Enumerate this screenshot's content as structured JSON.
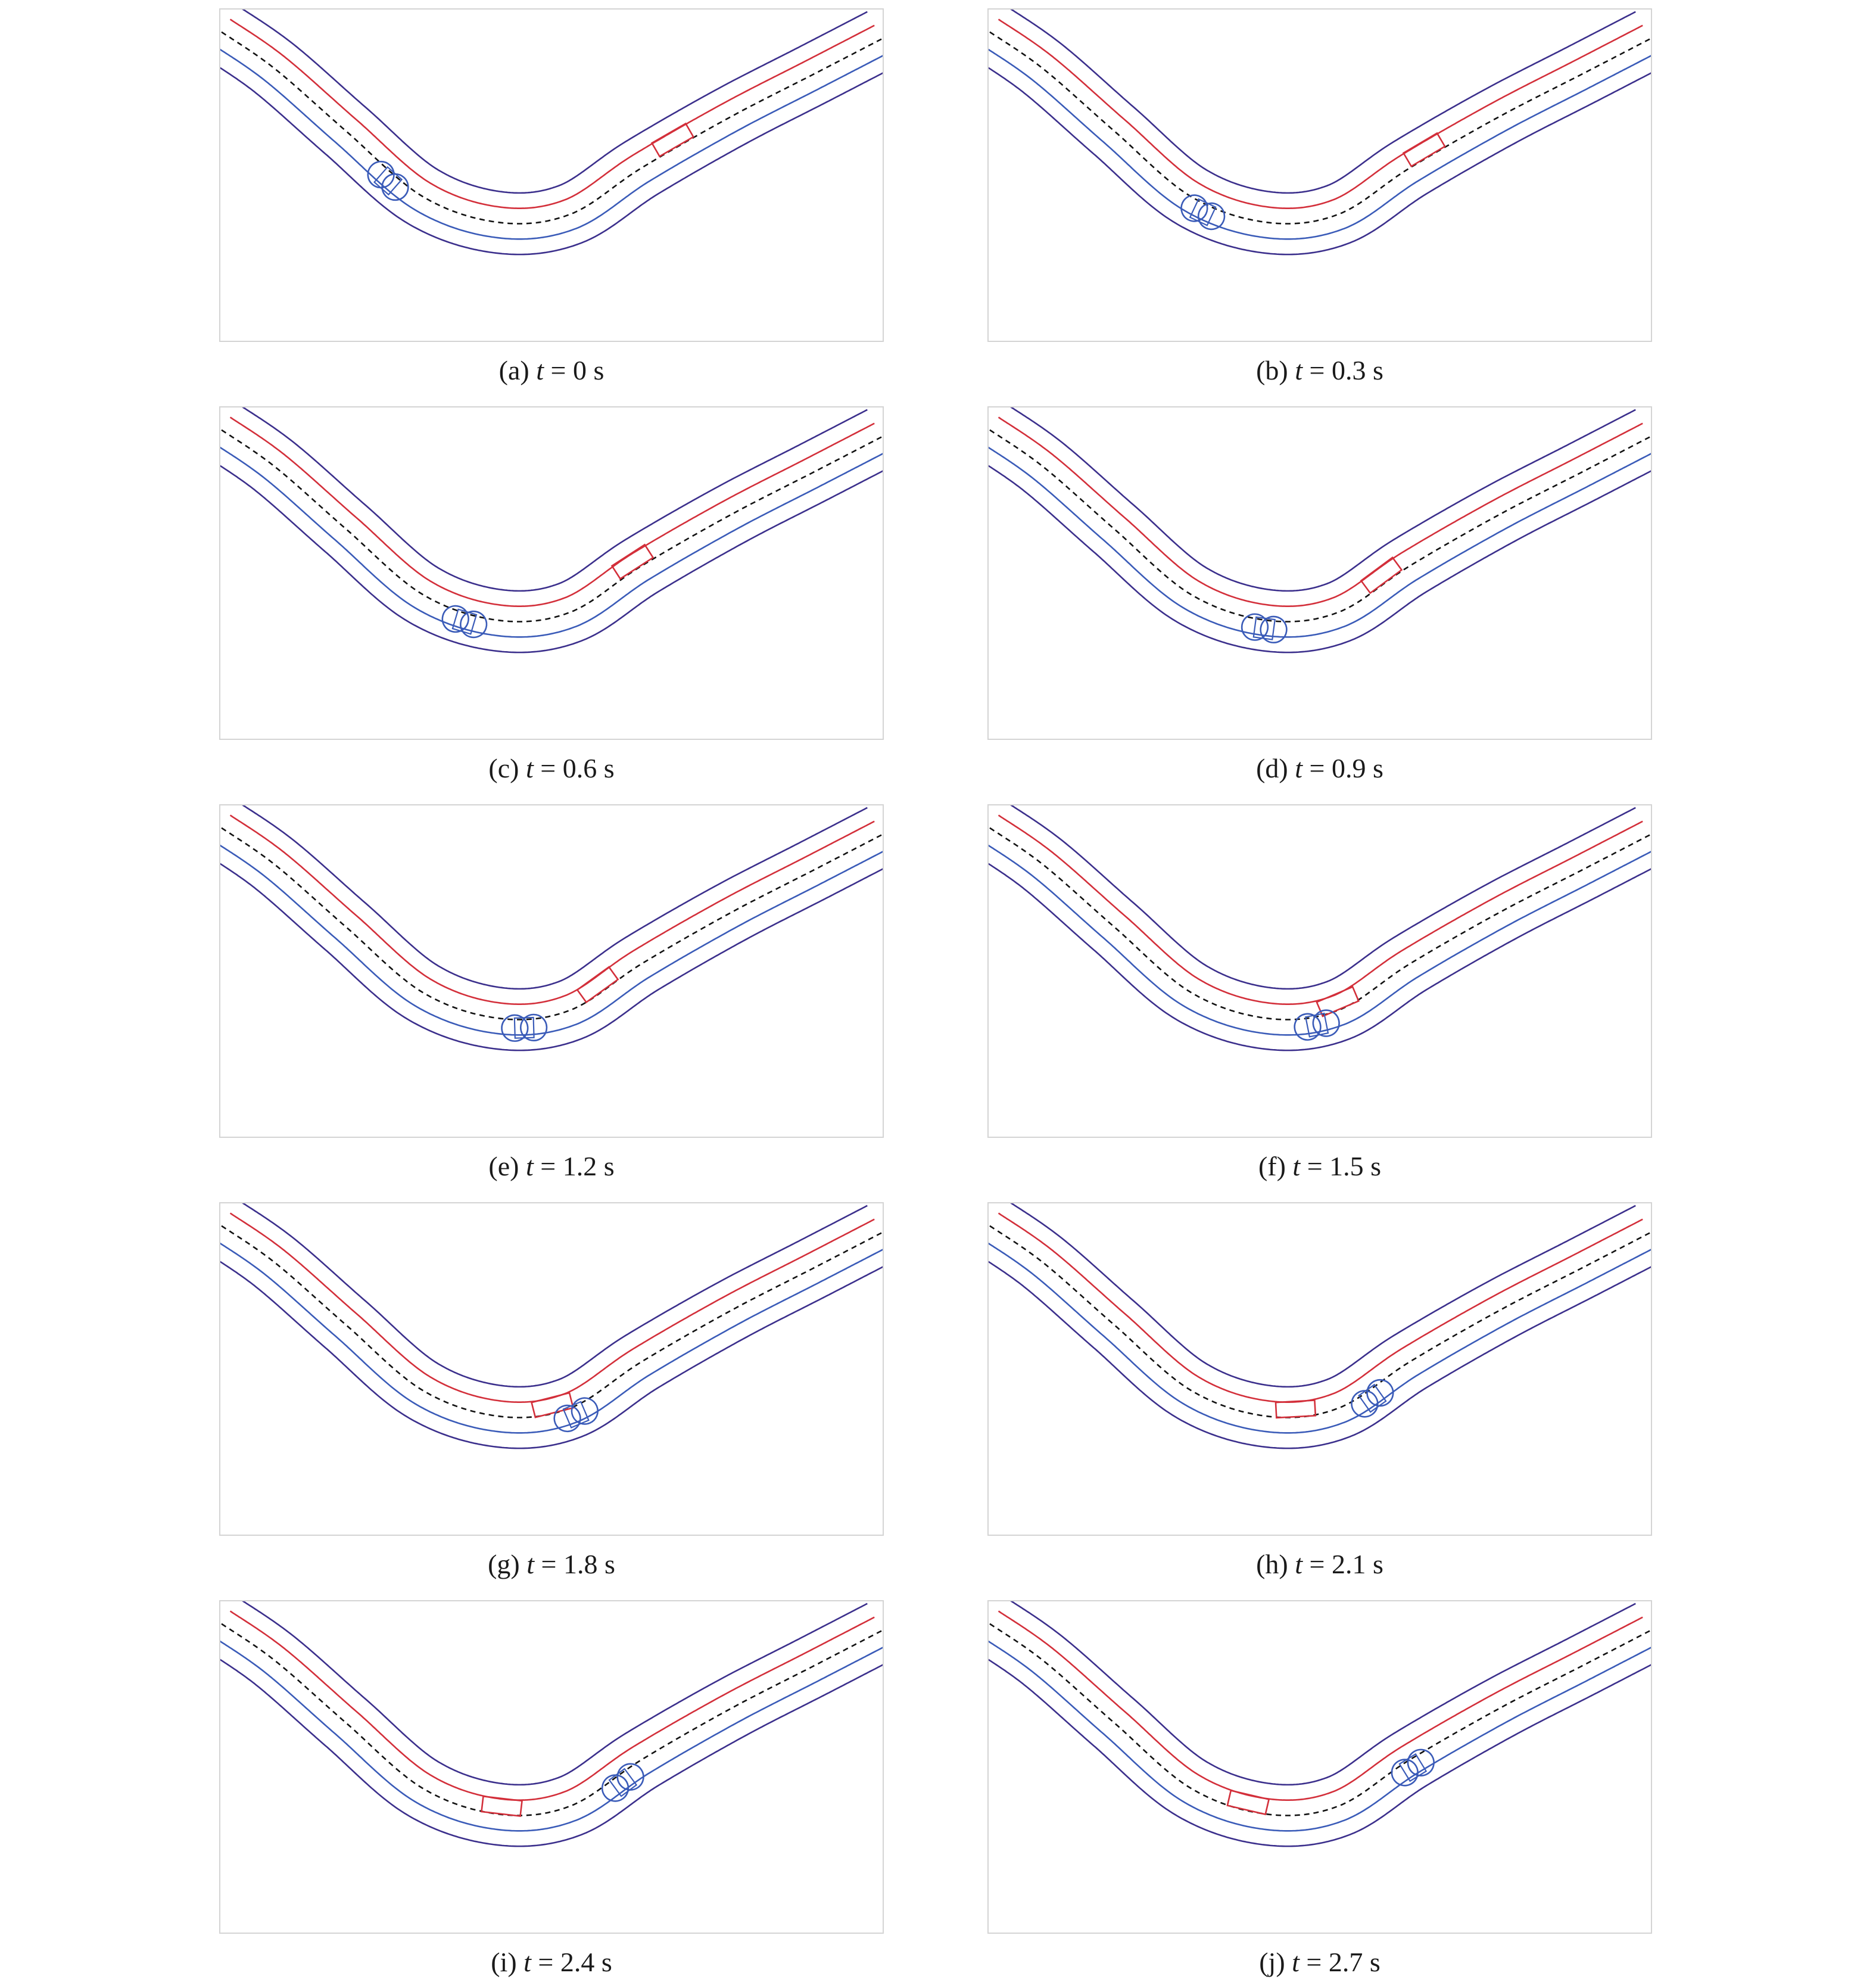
{
  "panels": [
    {
      "label": "(a)",
      "var": "t",
      "eq": "=",
      "value": "0",
      "unit": "s",
      "time": 0.0,
      "red_s": 0.7,
      "blue_s": 0.29
    },
    {
      "label": "(b)",
      "var": "t",
      "eq": "=",
      "value": "0.3",
      "unit": "s",
      "time": 0.3,
      "red_s": 0.675,
      "blue_s": 0.36
    },
    {
      "label": "(c)",
      "var": "t",
      "eq": "=",
      "value": "0.6",
      "unit": "s",
      "time": 0.6,
      "red_s": 0.64,
      "blue_s": 0.4
    },
    {
      "label": "(d)",
      "var": "t",
      "eq": "=",
      "value": "0.9",
      "unit": "s",
      "time": 0.9,
      "red_s": 0.61,
      "blue_s": 0.44
    },
    {
      "label": "(e)",
      "var": "t",
      "eq": "=",
      "value": "1.2",
      "unit": "s",
      "time": 1.2,
      "red_s": 0.585,
      "blue_s": 0.475
    },
    {
      "label": "(f)",
      "var": "t",
      "eq": "=",
      "value": "1.5",
      "unit": "s",
      "time": 1.5,
      "red_s": 0.54,
      "blue_s": 0.505
    },
    {
      "label": "(g)",
      "var": "t",
      "eq": "=",
      "value": "1.8",
      "unit": "s",
      "time": 1.8,
      "red_s": 0.515,
      "blue_s": 0.54
    },
    {
      "label": "(h)",
      "var": "t",
      "eq": "=",
      "value": "2.1",
      "unit": "s",
      "time": 2.1,
      "red_s": 0.48,
      "blue_s": 0.58
    },
    {
      "label": "(i)",
      "var": "t",
      "eq": "=",
      "value": "2.4",
      "unit": "s",
      "time": 2.4,
      "red_s": 0.445,
      "blue_s": 0.61
    },
    {
      "label": "(j)",
      "var": "t",
      "eq": "=",
      "value": "2.7",
      "unit": "s",
      "time": 2.7,
      "red_s": 0.415,
      "blue_s": 0.645
    }
  ],
  "colors": {
    "road_edge": "#3b2f8c",
    "lane_red": "#d32f3a",
    "lane_blue": "#3a5bb8",
    "center_dashed": "#111111",
    "red_vehicle": "#d32f3a",
    "blue_vehicle": "#3a5bb8",
    "frame": "#d4d4d4"
  }
}
